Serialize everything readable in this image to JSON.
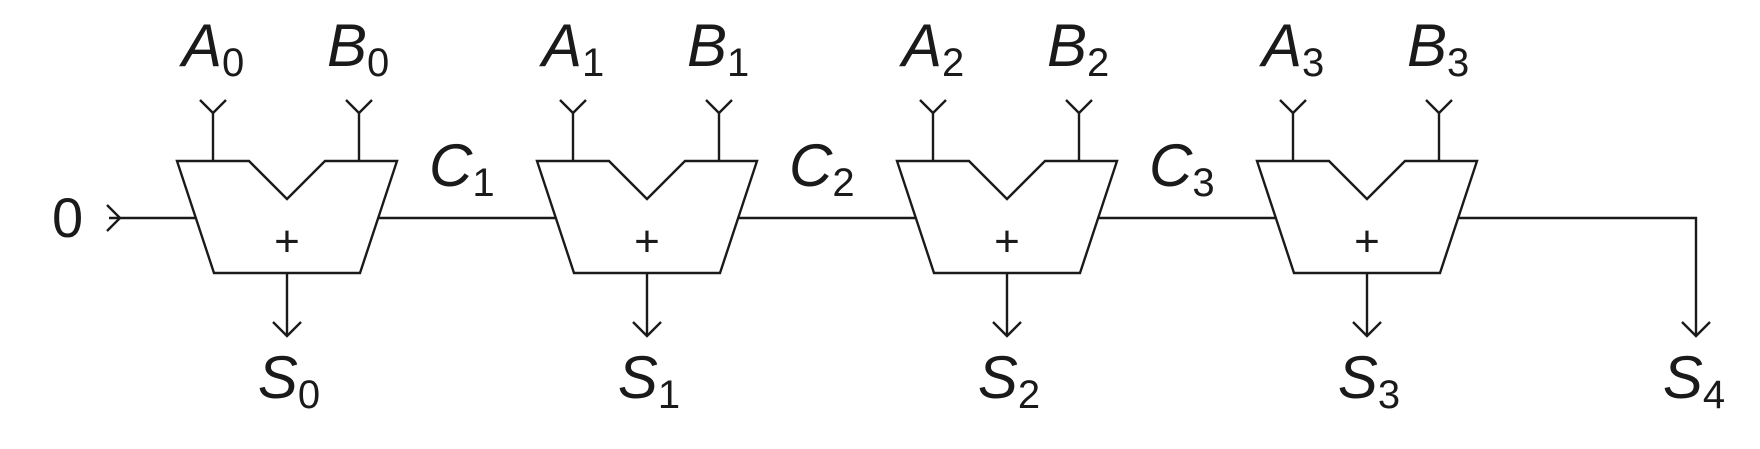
{
  "carry_in": "0",
  "adders": [
    {
      "a": "A",
      "a_sub": "0",
      "b": "B",
      "b_sub": "0",
      "op": "+",
      "s": "S",
      "s_sub": "0"
    },
    {
      "a": "A",
      "a_sub": "1",
      "b": "B",
      "b_sub": "1",
      "op": "+",
      "s": "S",
      "s_sub": "1"
    },
    {
      "a": "A",
      "a_sub": "2",
      "b": "B",
      "b_sub": "2",
      "op": "+",
      "s": "S",
      "s_sub": "2"
    },
    {
      "a": "A",
      "a_sub": "3",
      "b": "B",
      "b_sub": "3",
      "op": "+",
      "s": "S",
      "s_sub": "3"
    }
  ],
  "carries": [
    {
      "c": "C",
      "c_sub": "1"
    },
    {
      "c": "C",
      "c_sub": "2"
    },
    {
      "c": "C",
      "c_sub": "3"
    }
  ],
  "final_sum": {
    "s": "S",
    "s_sub": "4"
  }
}
